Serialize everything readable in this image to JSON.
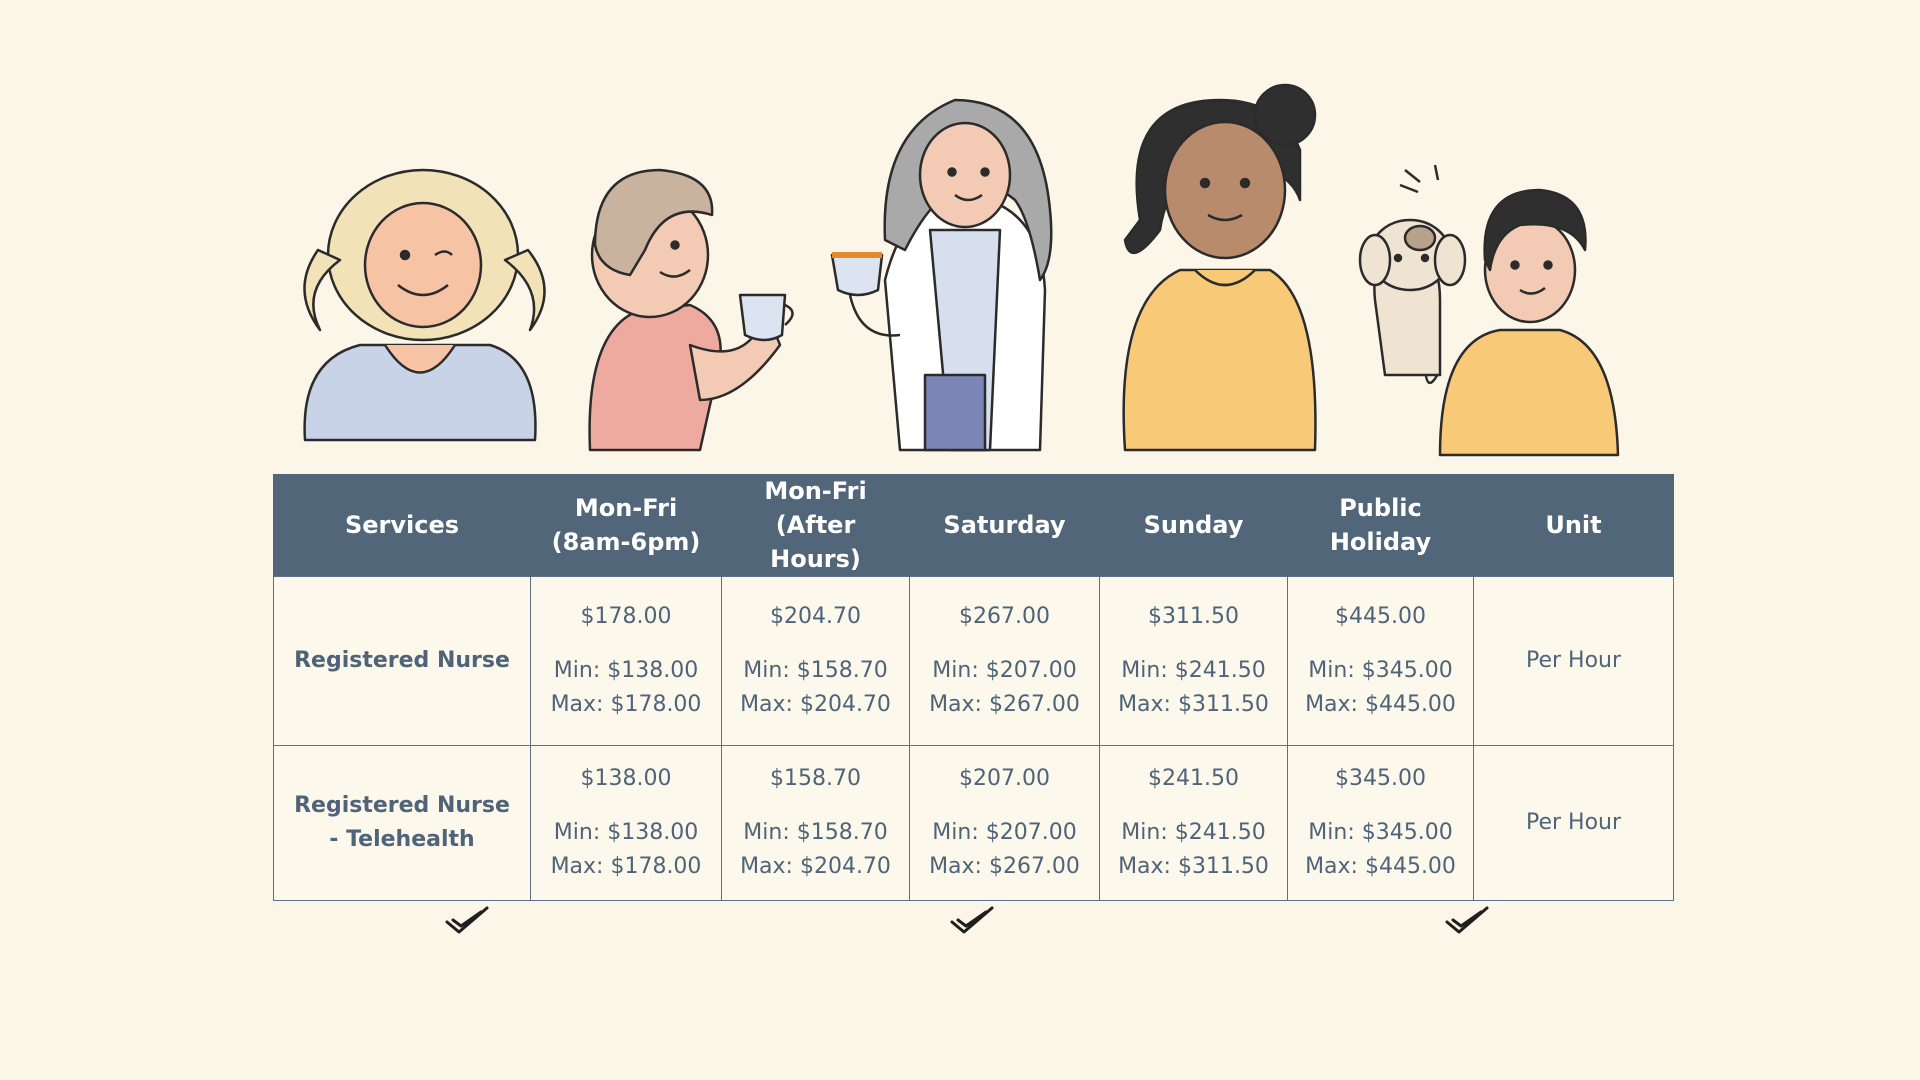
{
  "table": {
    "headers": [
      {
        "line1": "Services",
        "line2": ""
      },
      {
        "line1": "Mon-Fri",
        "line2": "(8am-6pm)"
      },
      {
        "line1": "Mon-Fri",
        "line2": "(After Hours)"
      },
      {
        "line1": "Saturday",
        "line2": ""
      },
      {
        "line1": "Sunday",
        "line2": ""
      },
      {
        "line1": "Public",
        "line2": "Holiday"
      },
      {
        "line1": "Unit",
        "line2": ""
      }
    ],
    "rows": [
      {
        "service_line1": "Registered Nurse",
        "service_line2": "",
        "cells": [
          {
            "rate": "$178.00",
            "min": "Min: $138.00",
            "max": "Max: $178.00"
          },
          {
            "rate": "$204.70",
            "min": "Min: $158.70",
            "max": "Max: $204.70"
          },
          {
            "rate": "$267.00",
            "min": "Min: $207.00",
            "max": "Max: $267.00"
          },
          {
            "rate": "$311.50",
            "min": "Min: $241.50",
            "max": "Max: $311.50"
          },
          {
            "rate": "$445.00",
            "min": "Min: $345.00",
            "max": "Max: $445.00"
          }
        ],
        "unit": "Per Hour"
      },
      {
        "service_line1": "Registered Nurse",
        "service_line2": "- Telehealth",
        "cells": [
          {
            "rate": "$138.00",
            "min": "Min: $138.00",
            "max": "Max: $178.00"
          },
          {
            "rate": "$158.70",
            "min": "Min: $158.70",
            "max": "Max: $204.70"
          },
          {
            "rate": "$207.00",
            "min": "Min: $207.00",
            "max": "Max: $267.00"
          },
          {
            "rate": "$241.50",
            "min": "Min: $241.50",
            "max": "Max: $311.50"
          },
          {
            "rate": "$345.00",
            "min": "Min: $345.00",
            "max": "Max: $445.00"
          }
        ],
        "unit": "Per Hour"
      }
    ]
  },
  "illustrations": [
    {
      "icon": "woman-blonde-curly-hair-icon"
    },
    {
      "icon": "woman-holding-cup-icon"
    },
    {
      "icon": "nurse-with-mug-icon"
    },
    {
      "icon": "woman-yellow-sweater-icon"
    },
    {
      "icon": "boy-with-puppy-icon"
    }
  ],
  "decorations": [
    {
      "icon": "checkmark-icon"
    },
    {
      "icon": "checkmark-icon"
    },
    {
      "icon": "checkmark-icon"
    }
  ],
  "colors": {
    "background": "#fcf6e9",
    "header": "#526679",
    "header_text": "#ffffff",
    "body_text": "#4f6478"
  }
}
